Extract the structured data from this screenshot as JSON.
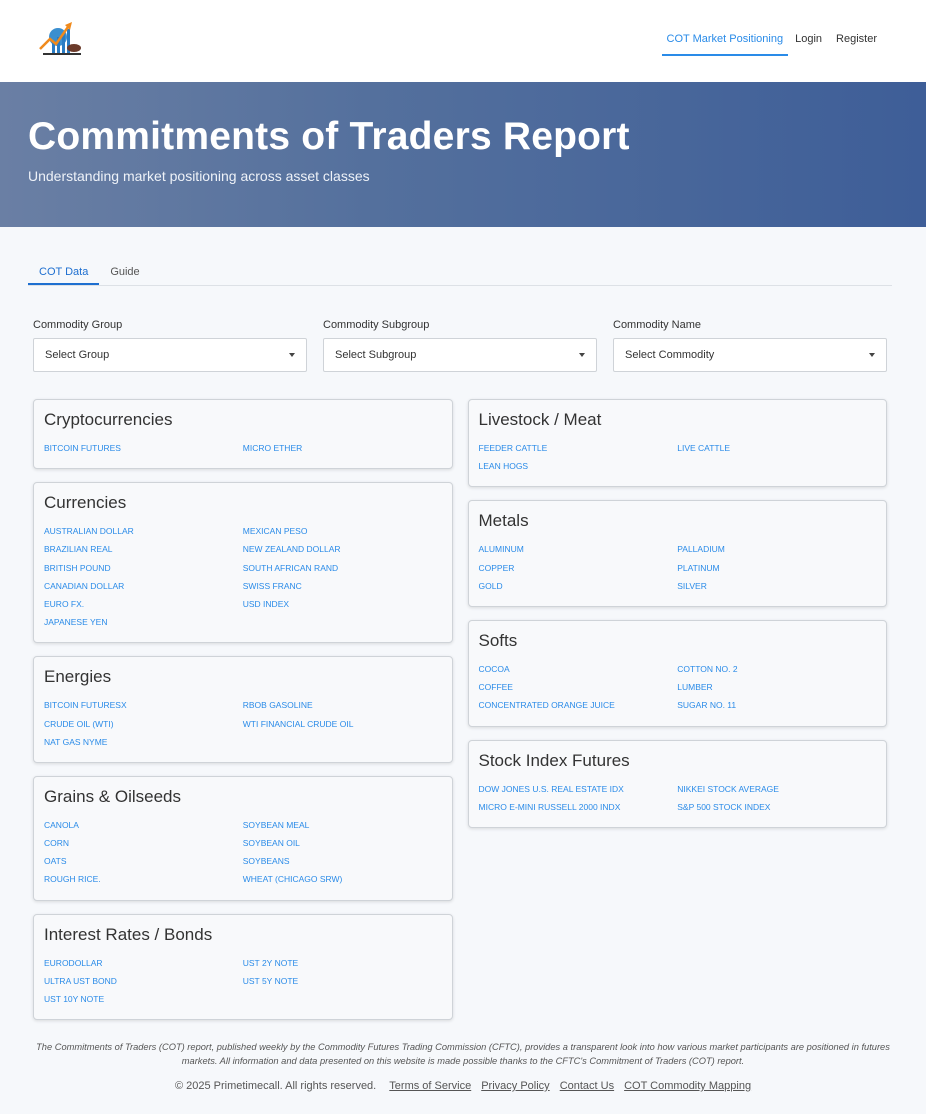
{
  "nav": {
    "links": [
      "COT Market Positioning",
      "Login",
      "Register"
    ],
    "active": 0
  },
  "hero": {
    "title": "Commitments of Traders Report",
    "subtitle": "Understanding market positioning across asset classes"
  },
  "tabs": [
    "COT Data",
    "Guide"
  ],
  "filters": [
    {
      "label": "Commodity Group",
      "value": "Select Group"
    },
    {
      "label": "Commodity Subgroup",
      "value": "Select Subgroup"
    },
    {
      "label": "Commodity Name",
      "value": "Select Commodity"
    }
  ],
  "left": [
    {
      "title": "Cryptocurrencies",
      "items": [
        "BITCOIN FUTURES",
        "MICRO ETHER"
      ]
    },
    {
      "title": "Currencies",
      "items": [
        "AUSTRALIAN DOLLAR",
        "MEXICAN PESO",
        "BRAZILIAN REAL",
        "NEW ZEALAND DOLLAR",
        "BRITISH POUND",
        "SOUTH AFRICAN RAND",
        "CANADIAN DOLLAR",
        "SWISS FRANC",
        "EURO FX.",
        "USD INDEX",
        "JAPANESE YEN"
      ]
    },
    {
      "title": "Energies",
      "items": [
        "BITCOIN FUTURESX",
        "RBOB GASOLINE",
        "CRUDE OIL (WTI)",
        "WTI FINANCIAL CRUDE OIL",
        "NAT GAS NYME"
      ]
    },
    {
      "title": "Grains & Oilseeds",
      "items": [
        "CANOLA",
        "SOYBEAN MEAL",
        "CORN",
        "SOYBEAN OIL",
        "OATS",
        "SOYBEANS",
        "ROUGH RICE.",
        "WHEAT (CHICAGO SRW)"
      ]
    },
    {
      "title": "Interest Rates / Bonds",
      "items": [
        "EURODOLLAR",
        "UST 2Y NOTE",
        "ULTRA UST BOND",
        "UST 5Y NOTE",
        "UST 10Y NOTE"
      ]
    }
  ],
  "right": [
    {
      "title": "Livestock / Meat",
      "items": [
        "FEEDER CATTLE",
        "LIVE CATTLE",
        "LEAN HOGS"
      ]
    },
    {
      "title": "Metals",
      "items": [
        "ALUMINUM",
        "PALLADIUM",
        "COPPER",
        "PLATINUM",
        "GOLD",
        "SILVER"
      ]
    },
    {
      "title": "Softs",
      "items": [
        "COCOA",
        "COTTON NO. 2",
        "COFFEE",
        "LUMBER",
        "CONCENTRATED ORANGE JUICE",
        "SUGAR NO. 11"
      ]
    },
    {
      "title": "Stock Index Futures",
      "items": [
        "DOW JONES U.S. REAL ESTATE IDX",
        "NIKKEI STOCK AVERAGE",
        "MICRO E-MINI RUSSELL 2000 INDX",
        "S&P 500 STOCK INDEX"
      ]
    }
  ],
  "footer": {
    "disclaimer": "The Commitments of Traders (COT) report, published weekly by the Commodity Futures Trading Commission (CFTC), provides a transparent look into how various market participants are positioned in futures markets. All information and data presented on this website is made possible thanks to the CFTC's Commitment of Traders (COT) report.",
    "copyright": "© 2025 Primetimecall. All rights reserved.",
    "links": [
      "Terms of Service",
      "Privacy Policy",
      "Contact Us",
      "COT Commodity Mapping"
    ]
  },
  "colors": {
    "accent": "#2a8be8",
    "tab_active": "#1e6fd0",
    "hero_start": "#6a7fa4",
    "hero_end": "#3e5e98"
  }
}
